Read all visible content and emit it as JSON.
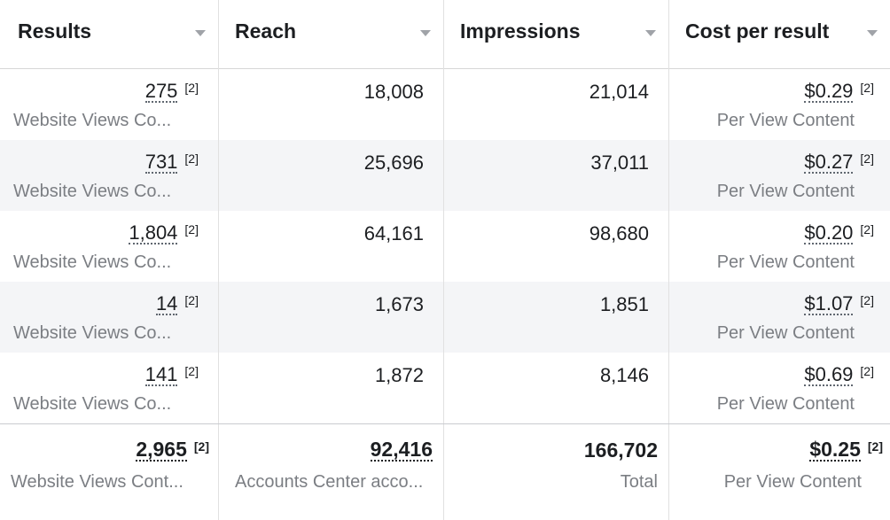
{
  "headers": [
    {
      "label": "Results"
    },
    {
      "label": "Reach"
    },
    {
      "label": "Impressions"
    },
    {
      "label": "Cost per result"
    }
  ],
  "rows": [
    {
      "results": "275",
      "results_note": "[2]",
      "results_sub": "Website Views Co...",
      "reach": "18,008",
      "impressions": "21,014",
      "cost": "$0.29",
      "cost_note": "[2]",
      "cost_sub": "Per View Content"
    },
    {
      "results": "731",
      "results_note": "[2]",
      "results_sub": "Website Views Co...",
      "reach": "25,696",
      "impressions": "37,011",
      "cost": "$0.27",
      "cost_note": "[2]",
      "cost_sub": "Per View Content"
    },
    {
      "results": "1,804",
      "results_note": "[2]",
      "results_sub": "Website Views Co...",
      "reach": "64,161",
      "impressions": "98,680",
      "cost": "$0.20",
      "cost_note": "[2]",
      "cost_sub": "Per View Content"
    },
    {
      "results": "14",
      "results_note": "[2]",
      "results_sub": "Website Views Co...",
      "reach": "1,673",
      "impressions": "1,851",
      "cost": "$1.07",
      "cost_note": "[2]",
      "cost_sub": "Per View Content"
    },
    {
      "results": "141",
      "results_note": "[2]",
      "results_sub": "Website Views Co...",
      "reach": "1,872",
      "impressions": "8,146",
      "cost": "$0.69",
      "cost_note": "[2]",
      "cost_sub": "Per View Content"
    }
  ],
  "totals": {
    "results": "2,965",
    "results_note": "[2]",
    "results_sub": "Website Views Cont...",
    "reach": "92,416",
    "reach_sub": "Accounts Center acco...",
    "impressions": "166,702",
    "impressions_sub": "Total",
    "cost": "$0.25",
    "cost_note": "[2]",
    "cost_sub": "Per View Content"
  }
}
